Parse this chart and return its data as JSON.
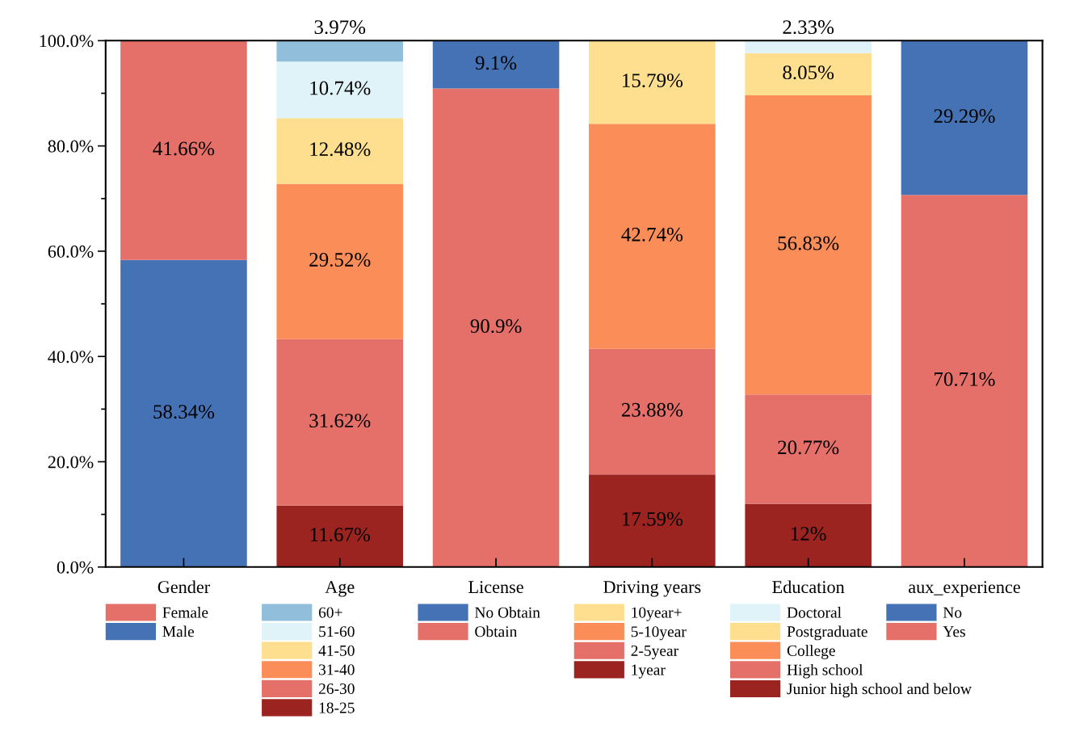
{
  "chart_data": {
    "type": "bar",
    "stacked": true,
    "legend": "bottom",
    "data_labels": false,
    "categories": [
      "Gender",
      "Age",
      "License",
      "Driving years",
      "Education",
      "aux_experience"
    ],
    "ylim": [
      0,
      100
    ],
    "yticks": [
      {
        "value": 0,
        "label": "0.0%"
      },
      {
        "value": 20,
        "label": "20.0%"
      },
      {
        "value": 40,
        "label": "40.0%"
      },
      {
        "value": 60,
        "label": "60.0%"
      },
      {
        "value": 80,
        "label": "80.0%"
      },
      {
        "value": 100,
        "label": "100.0%"
      }
    ],
    "series": [
      {
        "name": "Male",
        "color": "#4472b4",
        "values": [
          58.34,
          null,
          null,
          null,
          null,
          null
        ],
        "value_labels": [
          "58.34%",
          null,
          null,
          null,
          null,
          null
        ]
      },
      {
        "name": "Female",
        "color": "#e5706a",
        "values": [
          41.66,
          null,
          null,
          null,
          null,
          null
        ],
        "value_labels": [
          "41.66%",
          null,
          null,
          null,
          null,
          null
        ]
      },
      {
        "name": "18-25",
        "color": "#9b2420",
        "values": [
          null,
          11.67,
          null,
          null,
          null,
          null
        ],
        "value_labels": [
          null,
          "11.67%",
          null,
          null,
          null,
          null
        ]
      },
      {
        "name": "26-30",
        "color": "#e5706a",
        "values": [
          null,
          31.62,
          null,
          null,
          null,
          null
        ],
        "value_labels": [
          null,
          "31.62%",
          null,
          null,
          null,
          null
        ]
      },
      {
        "name": "31-40",
        "color": "#fb8d59",
        "values": [
          null,
          29.52,
          null,
          null,
          null,
          null
        ],
        "value_labels": [
          null,
          "29.52%",
          null,
          null,
          null,
          null
        ]
      },
      {
        "name": "41-50",
        "color": "#fddf8f",
        "values": [
          null,
          12.48,
          null,
          null,
          null,
          null
        ],
        "value_labels": [
          null,
          "12.48%",
          null,
          null,
          null,
          null
        ]
      },
      {
        "name": "51-60",
        "color": "#e0f3f8",
        "values": [
          null,
          10.74,
          null,
          null,
          null,
          null
        ],
        "value_labels": [
          null,
          "10.74%",
          null,
          null,
          null,
          null
        ]
      },
      {
        "name": "60+",
        "color": "#91bfdb",
        "values": [
          null,
          3.97,
          null,
          null,
          null,
          null
        ],
        "value_labels": [
          null,
          "3.97%",
          null,
          null,
          null,
          null
        ]
      },
      {
        "name": "Obtain",
        "color": "#e5706a",
        "values": [
          null,
          null,
          90.9,
          null,
          null,
          null
        ],
        "value_labels": [
          null,
          null,
          "90.9%",
          null,
          null,
          null
        ]
      },
      {
        "name": "No Obtain",
        "color": "#4472b4",
        "values": [
          null,
          null,
          9.1,
          null,
          null,
          null
        ],
        "value_labels": [
          null,
          null,
          "9.1%",
          null,
          null,
          null
        ]
      },
      {
        "name": "1year",
        "color": "#9b2420",
        "values": [
          null,
          null,
          null,
          17.59,
          null,
          null
        ],
        "value_labels": [
          null,
          null,
          null,
          "17.59%",
          null,
          null
        ]
      },
      {
        "name": "2-5year",
        "color": "#e5706a",
        "values": [
          null,
          null,
          null,
          23.88,
          null,
          null
        ],
        "value_labels": [
          null,
          null,
          null,
          "23.88%",
          null,
          null
        ]
      },
      {
        "name": "5-10year",
        "color": "#fb8d59",
        "values": [
          null,
          null,
          null,
          42.74,
          null,
          null
        ],
        "value_labels": [
          null,
          null,
          null,
          "42.74%",
          null,
          null
        ]
      },
      {
        "name": "10year+",
        "color": "#fddf8f",
        "values": [
          null,
          null,
          null,
          15.79,
          null,
          null
        ],
        "value_labels": [
          null,
          null,
          null,
          "15.79%",
          null,
          null
        ]
      },
      {
        "name": "Junior high school and below",
        "color": "#9b2420",
        "values": [
          null,
          null,
          null,
          null,
          12,
          null
        ],
        "value_labels": [
          null,
          null,
          null,
          null,
          "12%",
          null
        ]
      },
      {
        "name": "High school",
        "color": "#e5706a",
        "values": [
          null,
          null,
          null,
          null,
          20.77,
          null
        ],
        "value_labels": [
          null,
          null,
          null,
          null,
          "20.77%",
          null
        ]
      },
      {
        "name": "College",
        "color": "#fb8d59",
        "values": [
          null,
          null,
          null,
          null,
          56.83,
          null
        ],
        "value_labels": [
          null,
          null,
          null,
          null,
          "56.83%",
          null
        ]
      },
      {
        "name": "Postgraduate",
        "color": "#fddf8f",
        "values": [
          null,
          null,
          null,
          null,
          8.05,
          null
        ],
        "value_labels": [
          null,
          null,
          null,
          null,
          "8.05%",
          null
        ]
      },
      {
        "name": "Doctoral",
        "color": "#e0f3f8",
        "values": [
          null,
          null,
          null,
          null,
          2.33,
          null
        ],
        "value_labels": [
          null,
          null,
          null,
          null,
          "2.33%",
          null
        ]
      },
      {
        "name": "Yes",
        "color": "#e5706a",
        "values": [
          null,
          null,
          null,
          null,
          null,
          70.71
        ],
        "value_labels": [
          null,
          null,
          null,
          null,
          null,
          "70.71%"
        ]
      },
      {
        "name": "No",
        "color": "#4472b4",
        "values": [
          null,
          null,
          null,
          null,
          null,
          29.29
        ],
        "value_labels": [
          null,
          null,
          null,
          null,
          null,
          "29.29%"
        ]
      }
    ]
  }
}
